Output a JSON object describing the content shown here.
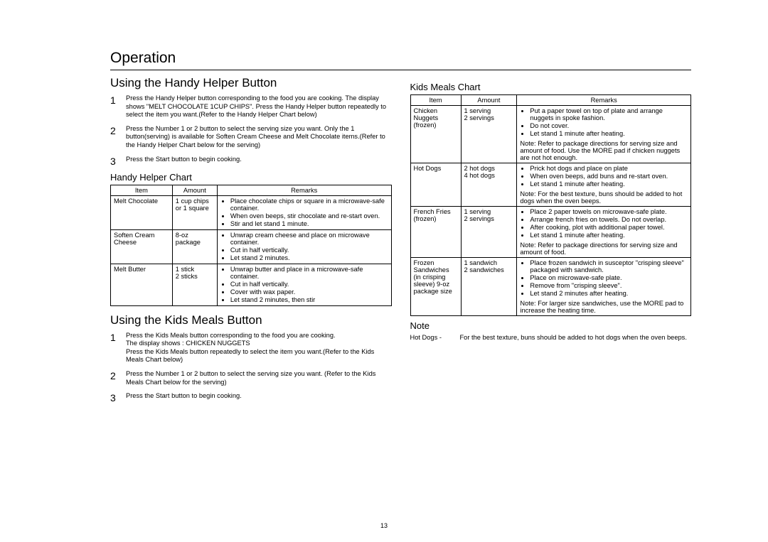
{
  "page": {
    "title": "Operation",
    "number": "13"
  },
  "left": {
    "section1": {
      "heading": "Using the Handy Helper Button",
      "steps": [
        "Press the Handy Helper  button corresponding to the food you are cooking. The display shows \"MELT CHOCOLATE 1CUP CHIPS\". Press the Handy Helper  button repeatedly to select the item you want.(Refer to the Handy Helper Chart   below)",
        "Press the Number  1 or 2 button to select the serving size you want. Only the 1 button(serving) is available for Soften Cream Cheese and Melt Chocolate items.(Refer to the Handy Helper Chart   below for the serving)",
        "Press the Start  button to begin cooking."
      ],
      "chart_title": "Handy Helper Chart",
      "chart": {
        "headers": [
          "Item",
          "Amount",
          "Remarks"
        ],
        "rows": [
          {
            "item": "Melt Chocolate",
            "amount": "1 cup chips or 1 square",
            "bullets": [
              "Place chocolate chips or square in a microwave-safe container.",
              "When oven beeps, stir chocolate and re-start oven.",
              "Stir and let stand 1 minute."
            ]
          },
          {
            "item": "Soften Cream Cheese",
            "amount": "8-oz package",
            "bullets": [
              "Unwrap cream cheese and place on microwave container.",
              "Cut in half vertically.",
              "Let stand 2 minutes."
            ]
          },
          {
            "item": "Melt Butter",
            "amount": "1 stick\n2 sticks",
            "bullets": [
              "Unwrap butter and place in a microwave-safe container.",
              "Cut in half vertically.",
              "Cover with wax paper.",
              "Let stand 2 minutes, then stir"
            ]
          }
        ]
      }
    },
    "section2": {
      "heading": "Using the Kids Meals Button",
      "steps": [
        "Press the Kids Meals  button corresponding to the food you are cooking.\nThe display shows : CHICKEN NUGGETS\nPress the Kids Meals  button repeatedly to select the item you want.(Refer to the Kids Meals Chart   below)",
        "Press the Number  1 or 2 button to select the serving size you want. (Refer to the Kids Meals Chart   below for the serving)",
        "Press the Start  button to begin cooking."
      ]
    }
  },
  "right": {
    "chart_title": "Kids Meals Chart",
    "chart": {
      "headers": [
        "Item",
        "Amount",
        "Remarks"
      ],
      "rows": [
        {
          "item": "Chicken Nuggets (frozen)",
          "amount": "1 serving\n2 servings",
          "bullets": [
            "Put a paper towel on top of plate and arrange nuggets in spoke fashion.",
            "Do not cover.",
            "Let stand 1 minute after heating."
          ],
          "note": "Note:   Refer to package directions for serving size and amount of food. Use the MORE pad if chicken nuggets are not hot enough."
        },
        {
          "item": "Hot Dogs",
          "amount": "2 hot dogs\n4 hot dogs",
          "bullets": [
            "Prick hot dogs and place on plate",
            "When oven beeps, add buns and re-start oven.",
            "Let stand 1 minute after heating."
          ],
          "note": "Note:  For the best texture, buns should be added to hot dogs when the oven beeps."
        },
        {
          "item": "French Fries (frozen)",
          "amount": "1 serving\n2 servings",
          "bullets": [
            "Place 2 paper towels on microwave-safe plate.",
            "Arrange french fries on towels.  Do not overlap.",
            "After cooking, plot with additional paper towel.",
            "Let stand 1 minute after heating."
          ],
          "note": "Note:   Refer to package directions for serving size and amount of food."
        },
        {
          "item": "Frozen Sandwiches (in crisping sleeve) 9-oz package size",
          "amount": "1 sandwich\n2 sandwiches",
          "bullets": [
            "Place frozen sandwich in susceptor \"crisping sleeve\" packaged with sandwich.",
            "Place on microwave-safe plate.",
            "Remove from \"crisping sleeve\".",
            "Let stand 2 minutes after heating."
          ],
          "note": "Note:   For larger size sandwiches, use the MORE pad to increase the heating time."
        }
      ]
    },
    "note_heading": "Note",
    "footnote_label": "Hot Dogs -",
    "footnote_text": "For the best texture, buns should be added to hot dogs when the oven beeps."
  }
}
